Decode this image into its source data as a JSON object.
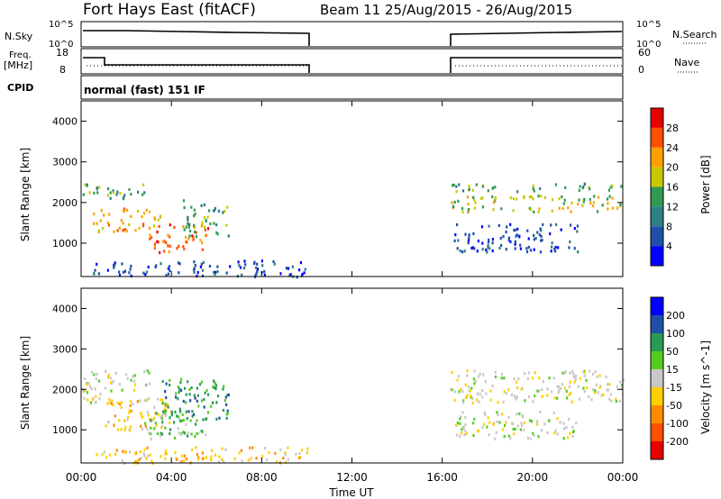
{
  "header": {
    "title": "Fort Hays East (fitACF)",
    "beam_info": "Beam 11 25/Aug/2015 - 26/Aug/2015"
  },
  "panels": {
    "nsky": {
      "label": "N.Sky",
      "right_label": "N.Search",
      "left_ticks": [
        "10^5",
        "10^0"
      ],
      "right_ticks": [
        "10^5",
        "10^0"
      ]
    },
    "freq": {
      "label_top": "Freq.",
      "label_bottom": "[MHz]",
      "right_label": "Nave",
      "left_ticks": [
        "18",
        "8"
      ],
      "right_ticks": [
        "60",
        "0"
      ]
    },
    "cpid": {
      "label": "CPID",
      "mode": "normal (fast) 151 IF"
    }
  },
  "chart_data": [
    {
      "type": "heatmap",
      "name": "power",
      "xlabel": "",
      "ylabel": "Slant Range [km]",
      "x_ticks": [
        "00:00",
        "04:00",
        "08:00",
        "12:00",
        "16:00",
        "20:00",
        "00:00"
      ],
      "y_ticks": [
        "4000",
        "3000",
        "2000",
        "1000"
      ],
      "ylim": [
        180,
        4500
      ],
      "colorbar_label": "Power [dB]",
      "colorbar_ticks": [
        "28",
        "24",
        "20",
        "16",
        "12",
        "8",
        "4"
      ],
      "colors": [
        "#0000ff",
        "#1f4fa8",
        "#2d7e86",
        "#2f9a50",
        "#c8c800",
        "#ffa000",
        "#ff5000",
        "#e60000"
      ],
      "regions": [
        {
          "t0": 0.0,
          "t1": 2.8,
          "r0": 2100,
          "r1": 2500,
          "level": 3
        },
        {
          "t0": 0.5,
          "t1": 3.5,
          "r0": 1300,
          "r1": 1900,
          "level": 5
        },
        {
          "t0": 3.0,
          "t1": 5.6,
          "r0": 800,
          "r1": 1500,
          "level": 6
        },
        {
          "t0": 4.5,
          "t1": 6.5,
          "r0": 1200,
          "r1": 2100,
          "level": 3
        },
        {
          "t0": 0.5,
          "t1": 10.0,
          "r0": 200,
          "r1": 600,
          "level": 1
        },
        {
          "t0": 16.3,
          "t1": 24.0,
          "r0": 1800,
          "r1": 2200,
          "level": 4
        },
        {
          "t0": 16.3,
          "t1": 24.0,
          "r0": 2300,
          "r1": 2500,
          "level": 3
        },
        {
          "t0": 16.5,
          "t1": 22.0,
          "r0": 800,
          "r1": 1500,
          "level": 1
        }
      ]
    },
    {
      "type": "heatmap",
      "name": "velocity",
      "xlabel": "Time UT",
      "ylabel": "Slant Range [km]",
      "x_ticks": [
        "00:00",
        "04:00",
        "08:00",
        "12:00",
        "16:00",
        "20:00",
        "00:00"
      ],
      "y_ticks": [
        "4000",
        "3000",
        "2000",
        "1000"
      ],
      "ylim": [
        180,
        4500
      ],
      "colorbar_label": "Velocity [m s^-1]",
      "colorbar_ticks": [
        "200",
        "100",
        "50",
        "15",
        "-15",
        "-50",
        "-100",
        "-200"
      ],
      "colors": [
        "#e60000",
        "#ff5000",
        "#ff8c00",
        "#ffd000",
        "#c8c8c8",
        "#55cc22",
        "#2a9a55",
        "#1f4fa8",
        "#0000ff"
      ],
      "regions": [
        {
          "t0": 0.0,
          "t1": 3.0,
          "r0": 1700,
          "r1": 2500,
          "level": 4
        },
        {
          "t0": 1.0,
          "t1": 4.0,
          "r0": 1000,
          "r1": 1800,
          "level": 3
        },
        {
          "t0": 2.5,
          "t1": 5.6,
          "r0": 800,
          "r1": 1500,
          "level": 5
        },
        {
          "t0": 3.5,
          "t1": 6.5,
          "r0": 1200,
          "r1": 2300,
          "level": 6
        },
        {
          "t0": 0.5,
          "t1": 10.0,
          "r0": 200,
          "r1": 600,
          "level": 3
        },
        {
          "t0": 16.3,
          "t1": 24.0,
          "r0": 1700,
          "r1": 2500,
          "level": 4
        },
        {
          "t0": 16.5,
          "t1": 22.0,
          "r0": 800,
          "r1": 1500,
          "level": 4
        }
      ]
    }
  ]
}
